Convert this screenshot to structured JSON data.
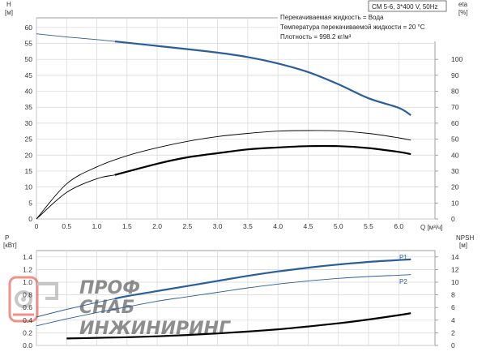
{
  "info": {
    "model": "CM 5-6, 3*400 V, 50Hz",
    "lines": [
      "Перекачиваемая жидкость = Вода",
      "Температура перекачиваемой жидкости = 20 °C",
      "Плотность = 998.2 кг/м³"
    ]
  },
  "watermark": {
    "line1": "ПРОФ",
    "line2": "СНАБ",
    "line3": "ИНЖИНИРИНГ"
  },
  "colors": {
    "head_curve": "#2a5e9a",
    "p1_curve": "#2a5e9a",
    "p2_curve": "#2a5e9a",
    "eta_curve": "#000000",
    "npsh_curve": "#000000",
    "grid": "#d6d6d6",
    "watermark": "#e23a2c"
  },
  "chart_data": [
    {
      "type": "line",
      "name": "head-efficiency",
      "x_label": "Q [м³/ч]",
      "x_ticks": [
        "0",
        "0.5",
        "1.0",
        "1.5",
        "2.0",
        "2.5",
        "3.0",
        "3.5",
        "4.0",
        "4.5",
        "5.0",
        "5.5",
        "6.0"
      ],
      "xlim": [
        0,
        6.6
      ],
      "y_left_label": [
        "H",
        "[м]"
      ],
      "y_left_ticks": [
        "0",
        "5",
        "10",
        "15",
        "20",
        "25",
        "30",
        "35",
        "40",
        "45",
        "50",
        "55",
        "60"
      ],
      "y_left_lim": [
        0,
        63
      ],
      "y_right_label": [
        "eta",
        "[%]"
      ],
      "y_right_ticks": [
        "0",
        "10",
        "20",
        "30",
        "40",
        "50",
        "60",
        "70",
        "80",
        "90",
        "100"
      ],
      "y_right_lim": [
        0,
        126
      ],
      "grid": true,
      "series": [
        {
          "name": "H",
          "axis": "left",
          "style": "thin-then-thick",
          "bold_from_x": 1.3,
          "x": [
            0,
            0.5,
            1.0,
            1.3,
            1.5,
            2.0,
            2.5,
            3.0,
            3.5,
            4.0,
            4.5,
            5.0,
            5.5,
            6.0,
            6.2
          ],
          "y": [
            58,
            57,
            56.2,
            55.6,
            55.2,
            54.2,
            53.2,
            52.1,
            50.7,
            48.7,
            46.0,
            42.2,
            37.8,
            34.8,
            32.5
          ]
        },
        {
          "name": "eta",
          "axis": "right",
          "style": "thin",
          "x": [
            0,
            0.5,
            1.0,
            1.5,
            2.0,
            2.5,
            3.0,
            3.5,
            4.0,
            4.5,
            5.0,
            5.5,
            6.0,
            6.2
          ],
          "y": [
            0,
            22,
            32.6,
            39.6,
            44.6,
            48.6,
            51.6,
            53.6,
            55.0,
            55.4,
            55.2,
            53.6,
            50.8,
            49.4
          ]
        },
        {
          "name": "eta",
          "axis": "right",
          "style": "thin-then-thick",
          "bold_from_x": 1.3,
          "x": [
            0,
            0.5,
            1.0,
            1.3,
            1.5,
            2.0,
            2.5,
            3.0,
            3.5,
            4.0,
            4.5,
            5.0,
            5.5,
            6.0,
            6.2
          ],
          "y": [
            0,
            16.6,
            25.2,
            27.6,
            29.6,
            34.6,
            38.6,
            41.2,
            43.6,
            44.8,
            45.6,
            45.6,
            44.4,
            42.0,
            40.6
          ]
        }
      ]
    },
    {
      "type": "line",
      "name": "power-npsh",
      "x_label": "",
      "xlim": [
        0,
        6.6
      ],
      "y_left_label": [
        "P",
        "[кВт]"
      ],
      "y_left_ticks": [
        "0.0",
        "0.2",
        "0.4",
        "0.6",
        "0.8",
        "1.0",
        "1.2",
        "1.4"
      ],
      "y_left_lim": [
        0,
        1.5
      ],
      "y_right_label": [
        "NPSH",
        "[м]"
      ],
      "y_right_ticks": [
        "0",
        "2",
        "4",
        "6",
        "8",
        "10",
        "12",
        "14"
      ],
      "y_right_lim": [
        0,
        15
      ],
      "grid": true,
      "series": [
        {
          "name": "P1",
          "axis": "left",
          "style": "thin-then-thick",
          "bold_from_x": 1.3,
          "x": [
            0,
            0.5,
            1.0,
            1.3,
            1.5,
            2.0,
            2.5,
            3.0,
            3.5,
            4.0,
            4.5,
            5.0,
            5.5,
            6.0,
            6.2
          ],
          "y": [
            0.45,
            0.57,
            0.68,
            0.74,
            0.78,
            0.86,
            0.94,
            1.02,
            1.1,
            1.17,
            1.23,
            1.28,
            1.32,
            1.35,
            1.36
          ]
        },
        {
          "name": "P2",
          "axis": "left",
          "style": "thin",
          "x": [
            0,
            0.5,
            1.0,
            1.5,
            2.0,
            2.5,
            3.0,
            3.5,
            4.0,
            4.5,
            5.0,
            5.5,
            6.0,
            6.2
          ],
          "y": [
            0.31,
            0.42,
            0.52,
            0.61,
            0.7,
            0.77,
            0.84,
            0.91,
            0.97,
            1.02,
            1.06,
            1.09,
            1.11,
            1.12
          ]
        },
        {
          "name": "NPSH",
          "axis": "right",
          "style": "thick",
          "x": [
            0.5,
            1.0,
            1.5,
            2.0,
            2.5,
            3.0,
            3.5,
            4.0,
            4.5,
            5.0,
            5.5,
            6.0,
            6.2
          ],
          "y": [
            1.1,
            1.2,
            1.3,
            1.45,
            1.65,
            1.9,
            2.2,
            2.55,
            3.0,
            3.5,
            4.1,
            4.8,
            5.1
          ]
        }
      ]
    }
  ]
}
